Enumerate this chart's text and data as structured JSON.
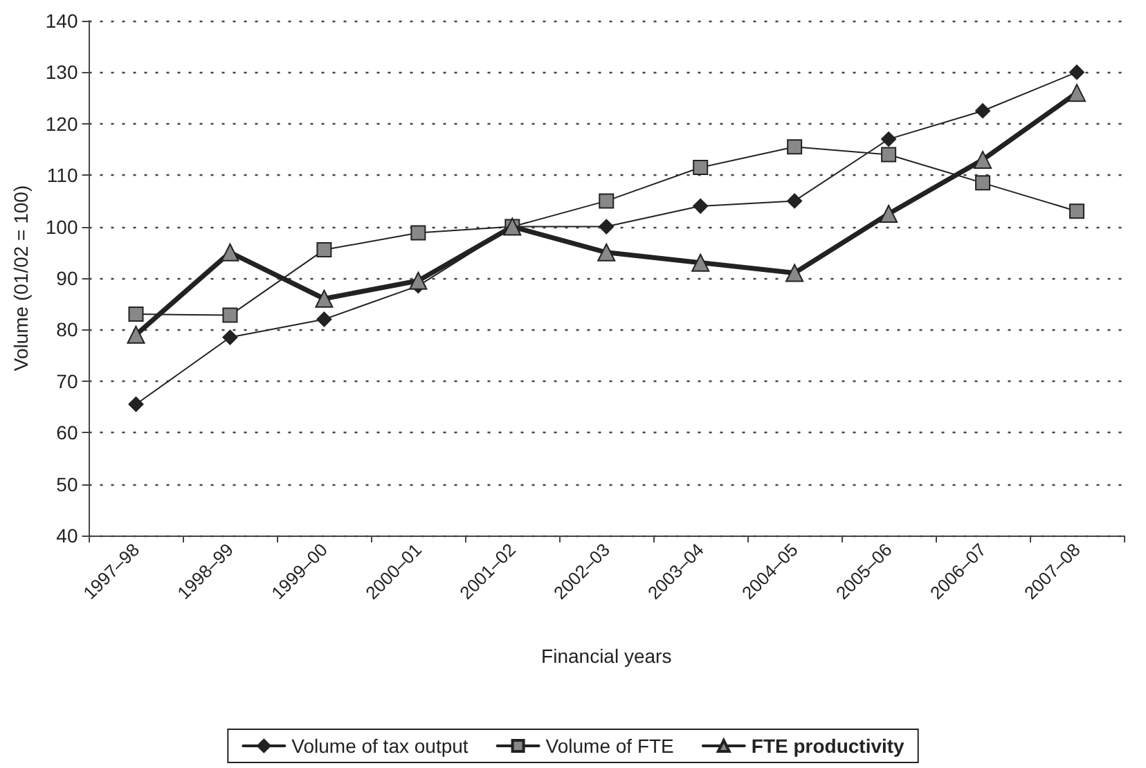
{
  "chart_data": {
    "type": "line",
    "xlabel": "Financial years",
    "ylabel": "Volume (01/02 = 100)",
    "categories": [
      "1997–98",
      "1998–99",
      "1999–00",
      "2000–01",
      "2001–02",
      "2002–03",
      "2003–04",
      "2004–05",
      "2005–06",
      "2006–07",
      "2007–08"
    ],
    "series": [
      {
        "name": "Volume of tax output",
        "color": "#222222",
        "marker": "diamond",
        "values": [
          65.5,
          78.5,
          82,
          88.5,
          100,
          100,
          104,
          105,
          117,
          122.5,
          130
        ]
      },
      {
        "name": "Volume of FTE",
        "color": "#888888",
        "marker": "square",
        "values": [
          83,
          82.8,
          95.5,
          98.8,
          100,
          105,
          111.5,
          115.5,
          114,
          108.5,
          103
        ]
      },
      {
        "name": "FTE productivity",
        "color": "#888888",
        "marker": "triangle",
        "values": [
          79,
          95,
          86,
          89.5,
          100,
          95,
          93,
          91,
          102.5,
          113,
          126
        ]
      }
    ],
    "ylim": [
      40,
      140
    ],
    "yticks": [
      40,
      50,
      60,
      70,
      80,
      90,
      100,
      110,
      120,
      130,
      140
    ],
    "grid": "y",
    "legend": "bottom",
    "line_style": "solid"
  }
}
